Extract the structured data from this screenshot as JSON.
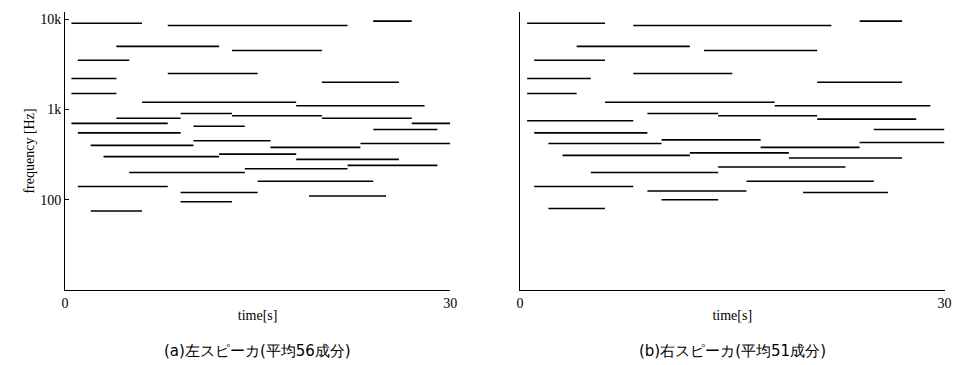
{
  "chart_data": [
    {
      "type": "line",
      "caption": "(a)左スピーカ(平均56成分)",
      "xlabel": "time[s]",
      "ylabel": "frequency [Hz]",
      "xlim": [
        0,
        30
      ],
      "xticks": [
        0,
        30
      ],
      "ylim": [
        10,
        12000
      ],
      "yticks": [
        100,
        {
          "value": 1000,
          "label": "1k"
        },
        {
          "value": 10000,
          "label": "10k"
        }
      ],
      "log": "y",
      "grid": false,
      "color": "#000000",
      "x": [
        0.5,
        4,
        null,
        0.5,
        4,
        null,
        1,
        5,
        null,
        0.5,
        8,
        null,
        1,
        9,
        null,
        4,
        9,
        null,
        9,
        13,
        null,
        13,
        20,
        null,
        20,
        27,
        null,
        27,
        30,
        null,
        2,
        10,
        null,
        10,
        16,
        null,
        16,
        23,
        null,
        23,
        30,
        null,
        3,
        12,
        null,
        12,
        18,
        null,
        18,
        26,
        null,
        5,
        14,
        null,
        14,
        22,
        null,
        22,
        29,
        null,
        1,
        8,
        null,
        9,
        15,
        null,
        15,
        24,
        null,
        2,
        6,
        null,
        9,
        13,
        null,
        19,
        25,
        null,
        0.5,
        6,
        null,
        8,
        22,
        null,
        24,
        27,
        null,
        4,
        12,
        null,
        13,
        20,
        null,
        6,
        18,
        null,
        18,
        28,
        null,
        8,
        15,
        null,
        20,
        26,
        null,
        10,
        14,
        null,
        24,
        29
      ],
      "values": [
        1500,
        1500,
        null,
        2200,
        2200,
        null,
        3500,
        3500,
        null,
        700,
        700,
        null,
        550,
        550,
        null,
        800,
        800,
        null,
        900,
        900,
        null,
        850,
        850,
        null,
        800,
        800,
        null,
        700,
        700,
        null,
        400,
        400,
        null,
        450,
        450,
        null,
        380,
        380,
        null,
        420,
        420,
        null,
        300,
        300,
        null,
        320,
        320,
        null,
        280,
        280,
        null,
        200,
        200,
        null,
        220,
        220,
        null,
        240,
        240,
        null,
        140,
        140,
        null,
        120,
        120,
        null,
        160,
        160,
        null,
        75,
        75,
        null,
        95,
        95,
        null,
        110,
        110,
        null,
        9000,
        9000,
        null,
        8500,
        8500,
        null,
        9500,
        9500,
        null,
        5000,
        5000,
        null,
        4500,
        4500,
        null,
        1200,
        1200,
        null,
        1100,
        1100,
        null,
        2500,
        2500,
        null,
        2000,
        2000,
        null,
        650,
        650,
        null,
        600,
        600
      ]
    },
    {
      "type": "line",
      "caption": "(b)右スピーカ(平均51成分)",
      "xlabel": "time[s]",
      "xlim": [
        0,
        30
      ],
      "xticks": [
        0,
        30
      ],
      "ylim": [
        10,
        12000
      ],
      "log": "y",
      "grid": false,
      "color": "#000000",
      "tick_labels": "x",
      "x": [
        0.5,
        4,
        null,
        0.5,
        5,
        null,
        1,
        6,
        null,
        0.5,
        8,
        null,
        1,
        9,
        null,
        9,
        14,
        null,
        14,
        21,
        null,
        21,
        28,
        null,
        2,
        10,
        null,
        10,
        17,
        null,
        17,
        24,
        null,
        24,
        30,
        null,
        3,
        12,
        null,
        12,
        19,
        null,
        19,
        27,
        null,
        5,
        14,
        null,
        14,
        23,
        null,
        1,
        8,
        null,
        9,
        16,
        null,
        16,
        25,
        null,
        2,
        6,
        null,
        10,
        14,
        null,
        20,
        26,
        null,
        0.5,
        6,
        null,
        8,
        22,
        null,
        24,
        27,
        null,
        4,
        12,
        null,
        13,
        21,
        null,
        6,
        18,
        null,
        18,
        29,
        null,
        8,
        15,
        null,
        21,
        27,
        null,
        25,
        30
      ],
      "values": [
        1500,
        1500,
        null,
        2200,
        2200,
        null,
        3500,
        3500,
        null,
        750,
        750,
        null,
        550,
        550,
        null,
        900,
        900,
        null,
        850,
        850,
        null,
        780,
        780,
        null,
        420,
        420,
        null,
        460,
        460,
        null,
        380,
        380,
        null,
        430,
        430,
        null,
        310,
        310,
        null,
        330,
        330,
        null,
        290,
        290,
        null,
        200,
        200,
        null,
        230,
        230,
        null,
        140,
        140,
        null,
        125,
        125,
        null,
        160,
        160,
        null,
        80,
        80,
        null,
        100,
        100,
        null,
        120,
        120,
        null,
        9000,
        9000,
        null,
        8500,
        8500,
        null,
        9500,
        9500,
        null,
        5000,
        5000,
        null,
        4500,
        4500,
        null,
        1200,
        1200,
        null,
        1100,
        1100,
        null,
        2500,
        2500,
        null,
        2000,
        2000,
        null,
        600,
        600
      ]
    }
  ]
}
